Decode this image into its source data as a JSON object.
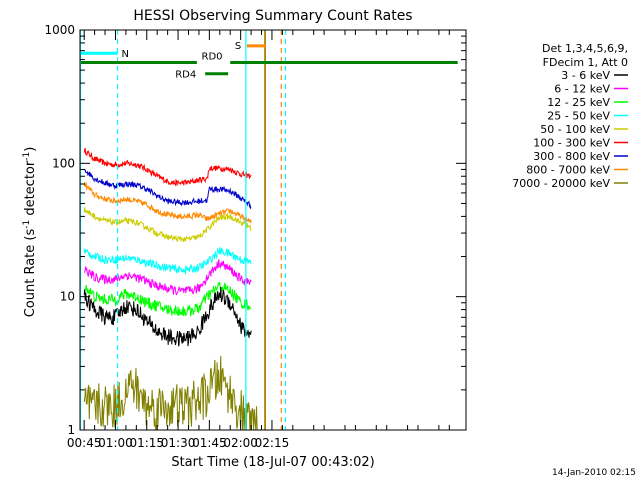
{
  "chart_data": {
    "type": "line",
    "title": "HESSI Observing Summary Count Rates",
    "xlabel": "Start Time (18-Jul-07 00:43:02)",
    "ylabel_main": "Count Rate (s",
    "ylabel_sup1": "-1",
    "ylabel_mid": " detector",
    "ylabel_sup2": "-1",
    "ylabel_end": ")",
    "footer": "14-Jan-2010 02:15",
    "y_scale": "log",
    "ylim": [
      1,
      1000
    ],
    "xlim_minutes": [
      43.0,
      228.0
    ],
    "x_tick_minutes": [
      45,
      60,
      75,
      90,
      105,
      120,
      135
    ],
    "x_tick_labels": [
      "00:45",
      "01:00",
      "01:15",
      "01:30",
      "01:45",
      "02:00",
      "02:15"
    ],
    "y_tick_values": [
      1,
      10,
      100,
      1000
    ],
    "y_tick_labels": [
      "1",
      "10",
      "100",
      "1000"
    ],
    "legend": {
      "placement": "right",
      "header": [
        "Det 1,3,4,5,6,9,",
        "FDecim 1, Att 0"
      ],
      "entries": [
        {
          "label": "3 - 6 keV",
          "color": "#000000"
        },
        {
          "label": "6 - 12 keV",
          "color": "#ff00ff"
        },
        {
          "label": "12 - 25 keV",
          "color": "#00ff00"
        },
        {
          "label": "25 - 50 keV",
          "color": "#00ffff"
        },
        {
          "label": "50 - 100 keV",
          "color": "#cccc00"
        },
        {
          "label": "100 - 300 keV",
          "color": "#ff0000"
        },
        {
          "label": "300 - 800 keV",
          "color": "#0000cc"
        },
        {
          "label": "800 - 7000 keV",
          "color": "#ff8800"
        },
        {
          "label": "7000 - 20000 keV",
          "color": "#808000"
        }
      ]
    },
    "series": [
      {
        "name": "100 - 300 keV",
        "color": "#ff0000",
        "x": [
          45,
          50,
          55,
          60,
          65,
          70,
          75,
          80,
          85,
          90,
          95,
          100,
          104,
          105,
          110,
          115,
          120,
          125
        ],
        "y": [
          125,
          108,
          100,
          97,
          100,
          98,
          90,
          80,
          73,
          71,
          72,
          75,
          77,
          92,
          92,
          90,
          83,
          80
        ],
        "noise": 0.05
      },
      {
        "name": "800 - 7000 keV",
        "color": "#ff8800",
        "x": [
          45,
          50,
          55,
          60,
          65,
          70,
          75,
          80,
          85,
          90,
          95,
          100,
          104,
          110,
          115,
          120,
          125
        ],
        "y": [
          70,
          58,
          54,
          52,
          54,
          52,
          49,
          44,
          41,
          40,
          40,
          41,
          38,
          42,
          44,
          40,
          36
        ],
        "noise": 0.05
      },
      {
        "name": "300 - 800 keV",
        "color": "#0000cc",
        "x": [
          45,
          50,
          55,
          60,
          65,
          70,
          75,
          80,
          85,
          90,
          95,
          100,
          104,
          105,
          110,
          115,
          120,
          125
        ],
        "y": [
          90,
          77,
          71,
          68,
          70,
          69,
          64,
          57,
          52,
          51,
          51,
          52,
          53,
          64,
          64,
          62,
          55,
          48
        ],
        "noise": 0.05
      },
      {
        "name": "50 - 100 keV",
        "color": "#cccc00",
        "x": [
          45,
          50,
          55,
          60,
          65,
          70,
          75,
          80,
          85,
          90,
          95,
          100,
          104,
          110,
          115,
          120,
          125
        ],
        "y": [
          45,
          40,
          37,
          36,
          37,
          36,
          33,
          30,
          28,
          27,
          27,
          28,
          32,
          39,
          40,
          36,
          33
        ],
        "noise": 0.05
      },
      {
        "name": "25 - 50 keV",
        "color": "#00ffff",
        "x": [
          45,
          50,
          55,
          60,
          65,
          70,
          75,
          80,
          85,
          90,
          95,
          100,
          104,
          110,
          115,
          120,
          125
        ],
        "y": [
          22,
          20,
          19,
          19,
          19.5,
          19,
          18,
          17,
          16.5,
          16,
          16,
          16.5,
          18,
          22,
          21,
          19,
          18
        ],
        "noise": 0.07
      },
      {
        "name": "6 - 12 keV",
        "color": "#ff00ff",
        "x": [
          45,
          50,
          55,
          60,
          65,
          70,
          75,
          80,
          85,
          90,
          95,
          100,
          104,
          110,
          115,
          120,
          125
        ],
        "y": [
          16,
          14,
          13.5,
          13.5,
          14.5,
          14,
          13,
          12,
          11.5,
          11,
          11,
          11.5,
          14,
          18,
          16,
          13.5,
          12.5
        ],
        "noise": 0.08
      },
      {
        "name": "12 - 25 keV",
        "color": "#00ff00",
        "x": [
          45,
          50,
          55,
          60,
          65,
          70,
          75,
          80,
          85,
          90,
          95,
          100,
          104,
          110,
          115,
          120,
          125
        ],
        "y": [
          12,
          10,
          9.5,
          9.5,
          10.5,
          10,
          9,
          8.5,
          8,
          7.8,
          7.8,
          8.2,
          10,
          12,
          11,
          9,
          8.5
        ],
        "noise": 0.1
      },
      {
        "name": "3 - 6 keV",
        "color": "#000000",
        "x": [
          45,
          50,
          55,
          60,
          65,
          70,
          75,
          80,
          85,
          90,
          95,
          100,
          104,
          110,
          115,
          120,
          125
        ],
        "y": [
          10,
          8,
          7,
          7,
          8.5,
          8,
          6.5,
          5.5,
          5,
          4.8,
          4.9,
          5.5,
          7.5,
          10.5,
          9,
          6,
          5
        ],
        "noise": 0.14
      },
      {
        "name": "7000 - 20000 keV",
        "color": "#808000",
        "x": [
          45,
          60,
          68,
          75,
          95,
          103,
          110,
          117,
          122,
          128
        ],
        "y": [
          1.5,
          1.5,
          2.2,
          1.5,
          1.5,
          1.8,
          2.5,
          1.6,
          1.2,
          1.0
        ],
        "noise": 0.4
      }
    ],
    "annotations": {
      "N": {
        "label": "N",
        "x_start": 43.5,
        "x_end": 61,
        "y": 670,
        "color": "#00ffff"
      },
      "S": {
        "label": "S",
        "x_start": 123,
        "x_end": 132,
        "y": 760,
        "color": "#ff8800"
      },
      "RD0": {
        "label": "RD0",
        "x_start": 43.5,
        "x_end": 224,
        "gap": [
          99,
          115
        ],
        "y": 570,
        "color": "#008000"
      },
      "RD4": {
        "label": "RD4",
        "x_start": 103,
        "x_end": 114,
        "y": 470,
        "color": "#008000"
      },
      "vlines": [
        {
          "x": 43.2,
          "color": "#00ffff",
          "dashed": false
        },
        {
          "x": 61,
          "color": "#00ffff",
          "dashed": true
        },
        {
          "x": 122.5,
          "color": "#00ffff",
          "dashed": false
        },
        {
          "x": 131.5,
          "color": "#ff8800",
          "dashed": false
        },
        {
          "x": 131.8,
          "color": "#808000",
          "dashed": false
        },
        {
          "x": 139.5,
          "color": "#ff8800",
          "dashed": true
        },
        {
          "x": 141.5,
          "color": "#00ffff",
          "dashed": true
        }
      ]
    }
  }
}
